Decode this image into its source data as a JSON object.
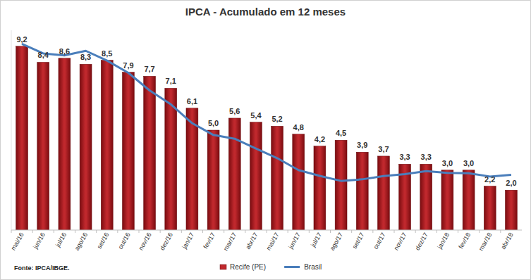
{
  "chart_data": {
    "type": "bar",
    "title": "IPCA - Acumulado em 12 meses",
    "annotations": [
      "Fonte: IPCA/IBGE."
    ],
    "categories": [
      "mai/16",
      "jun/16",
      "jul/16",
      "ago/16",
      "set/16",
      "out/16",
      "nov/16",
      "dez/16",
      "jan/17",
      "fev/17",
      "mar/17",
      "abr/17",
      "mai/17",
      "jun/17",
      "jul/17",
      "ago/17",
      "set/17",
      "out/17",
      "nov/17",
      "dez/17",
      "jan/18",
      "fev/18",
      "mar/18",
      "abr/18"
    ],
    "series": [
      {
        "name": "Recife (PE)",
        "type": "bar",
        "color": "#c0282d",
        "data_labels": true,
        "values": [
          9.2,
          8.4,
          8.6,
          8.3,
          8.5,
          7.9,
          7.7,
          7.1,
          6.1,
          5.0,
          5.6,
          5.4,
          5.2,
          4.8,
          4.2,
          4.5,
          3.9,
          3.7,
          3.3,
          3.3,
          3.0,
          3.0,
          2.2,
          2.0
        ],
        "value_labels": [
          "9,2",
          "8,4",
          "8,6",
          "8,3",
          "8,5",
          "7,9",
          "7,7",
          "7,1",
          "6,1",
          "5,0",
          "5,6",
          "5,4",
          "5,2",
          "4,8",
          "4,2",
          "4,5",
          "3,9",
          "3,7",
          "3,3",
          "3,3",
          "3,0",
          "3,0",
          "2,2",
          "2,0"
        ]
      },
      {
        "name": "Brasil",
        "type": "line",
        "color": "#4a7ebb",
        "values": [
          9.32,
          8.84,
          8.74,
          8.97,
          8.48,
          7.87,
          6.99,
          6.29,
          5.35,
          4.76,
          4.57,
          4.08,
          3.6,
          3.0,
          2.71,
          2.46,
          2.54,
          2.7,
          2.8,
          2.95,
          2.86,
          2.84,
          2.68,
          2.76
        ]
      }
    ],
    "ylim": [
      0,
      10
    ],
    "tick_labels": "x",
    "legend": "bottom",
    "grid": false
  }
}
